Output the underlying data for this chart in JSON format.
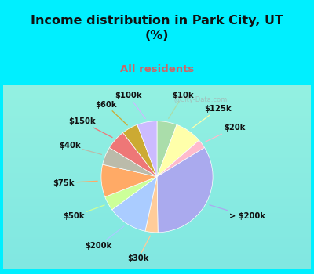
{
  "title": "Income distribution in Park City, UT\n(%)",
  "subtitle": "All residents",
  "title_color": "#111111",
  "subtitle_color": "#cc6666",
  "background_color": "#00efff",
  "pie_bg_gradient_top": "#e0f5f0",
  "pie_bg_gradient_bot": "#d0eee0",
  "labels": [
    "$10k",
    "$125k",
    "$20k",
    "> $200k",
    "$30k",
    "$200k",
    "$50k",
    "$75k",
    "$40k",
    "$150k",
    "$60k",
    "$100k"
  ],
  "values": [
    5.5,
    7.5,
    2.5,
    32.0,
    3.5,
    11.0,
    4.0,
    9.0,
    5.0,
    5.5,
    4.5,
    5.5
  ],
  "colors": [
    "#aaddaa",
    "#ffffaa",
    "#ffbbcc",
    "#aaaaee",
    "#ffcc99",
    "#aaccff",
    "#ccff99",
    "#ffaa66",
    "#bbbbaa",
    "#ee7777",
    "#ccaa33",
    "#ccbbff"
  ],
  "startangle": 90,
  "watermark": "@City-Data.com"
}
